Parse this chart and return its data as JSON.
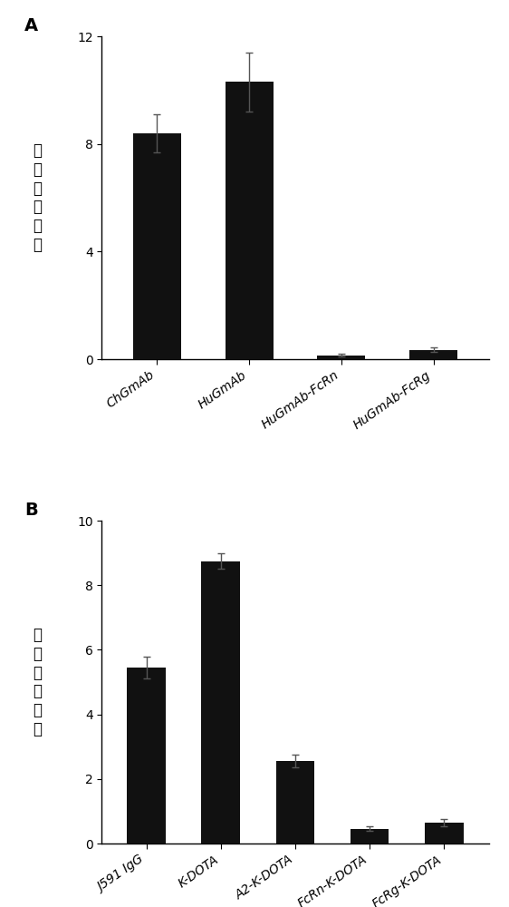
{
  "panel_A": {
    "categories": [
      "ChGmAb",
      "HuGmAb",
      "HuGmAb-FcRn",
      "HuGmAb-FcRg"
    ],
    "values": [
      8.4,
      10.3,
      0.15,
      0.35
    ],
    "errors": [
      0.7,
      1.1,
      0.05,
      0.08
    ],
    "ylabel": "半衰期（天）",
    "ylim": [
      0,
      12
    ],
    "yticks": [
      0,
      4,
      8,
      12
    ],
    "label": "A"
  },
  "panel_B": {
    "categories": [
      "J591 IgG",
      "K-DOTA",
      "A2-K-DOTA",
      "FcRn-K-DOTA",
      "FcRg-K-DOTA"
    ],
    "values": [
      5.45,
      8.75,
      2.55,
      0.45,
      0.65
    ],
    "errors": [
      0.35,
      0.25,
      0.2,
      0.07,
      0.12
    ],
    "ylabel": "半衰期（天）",
    "ylim": [
      0,
      10
    ],
    "yticks": [
      0,
      2,
      4,
      6,
      8,
      10
    ],
    "label": "B"
  },
  "bar_color": "#111111",
  "bar_width": 0.52,
  "ecolor": "#555555",
  "capsize": 3,
  "bg_color": "#ffffff",
  "tick_fontsize": 10,
  "ylabel_fontsize": 12,
  "label_fontsize": 14,
  "xticklabel_rotation": 35,
  "xticklabel_ha": "right"
}
